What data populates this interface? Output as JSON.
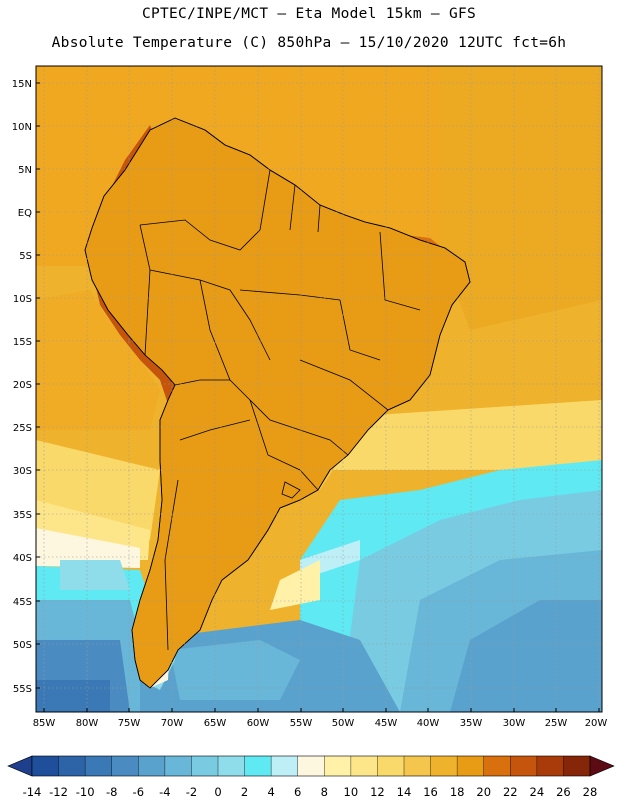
{
  "header": {
    "line1": "CPTEC/INPE/MCT —  Eta Model 15km — GFS",
    "line2": "Absolute Temperature (C) 850hPa — 15/10/2020 12UTC fct=6h"
  },
  "map": {
    "region": "South America",
    "variable": "Absolute Temperature",
    "units": "C",
    "level": "850hPa",
    "lat_labels": [
      "15N",
      "10N",
      "5N",
      "EQ",
      "5S",
      "10S",
      "15S",
      "20S",
      "25S",
      "30S",
      "35S",
      "40S",
      "45S",
      "50S",
      "55S"
    ],
    "lon_labels": [
      "85W",
      "80W",
      "75W",
      "70W",
      "65W",
      "60W",
      "55W",
      "50W",
      "45W",
      "40W",
      "35W",
      "30W",
      "25W",
      "20W"
    ]
  },
  "colorbar": {
    "labels": [
      "-14",
      "-12",
      "-10",
      "-8",
      "-6",
      "-4",
      "-2",
      "0",
      "2",
      "4",
      "6",
      "8",
      "10",
      "12",
      "14",
      "16",
      "18",
      "20",
      "22",
      "24",
      "26",
      "28"
    ],
    "colors": [
      "#1f4f9a",
      "#2d64a8",
      "#3a78b6",
      "#4a8cc2",
      "#59a2cd",
      "#68b6d8",
      "#79cbe2",
      "#8fdcea",
      "#5ee9f3",
      "#bfeff6",
      "#fdf7e0",
      "#fff2a8",
      "#fde68a",
      "#f9d96a",
      "#f4c64d",
      "#efb22c",
      "#e89b14",
      "#d9700e",
      "#c5550c",
      "#a93b0a",
      "#862608"
    ],
    "low_color": "#1d3f8c",
    "high_color": "#5c0a14"
  }
}
